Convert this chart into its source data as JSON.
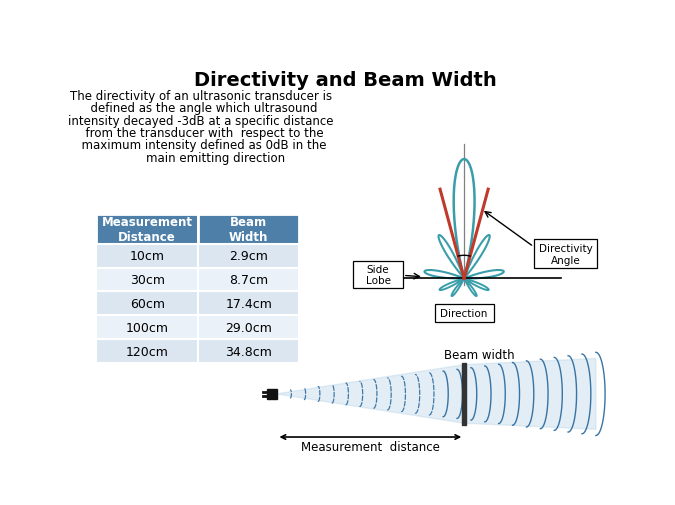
{
  "title": "Directivity and Beam Width",
  "description_lines": [
    "The directivity of an ultrasonic transducer is",
    "  defined as the angle which ultrasound",
    "intensity decayed -3dB at a specific distance",
    "  from the transducer with  respect to the",
    "  maximum intensity defined as 0dB in the",
    "        main emitting direction"
  ],
  "table_headers": [
    "Measurement\nDistance",
    "Beam\nWidth"
  ],
  "table_data": [
    [
      "10cm",
      "2.9cm"
    ],
    [
      "30cm",
      "8.7cm"
    ],
    [
      "60cm",
      "17.4cm"
    ],
    [
      "100cm",
      "29.0cm"
    ],
    [
      "120cm",
      "34.8cm"
    ]
  ],
  "header_color": "#4d7fa8",
  "row_colors": [
    "#dce6f1",
    "#eaf1f8"
  ],
  "teal_color": "#3a9eaa",
  "red_color": "#c0392b",
  "gray_color": "#888888",
  "dark_color": "#222222",
  "blue_light": "#b8d4e8",
  "beam_dashed_color": "#2e6da0",
  "arrow_color": "#222222"
}
